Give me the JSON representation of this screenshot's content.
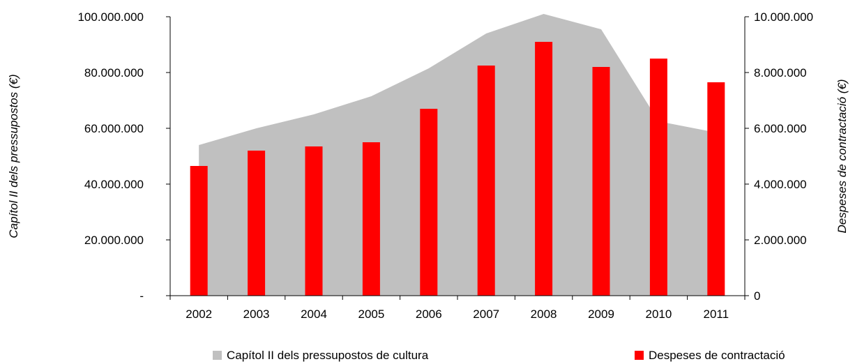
{
  "chart_data": {
    "type": "bar",
    "categories": [
      "2002",
      "2003",
      "2004",
      "2005",
      "2006",
      "2007",
      "2008",
      "2009",
      "2010",
      "2011"
    ],
    "series": [
      {
        "name": "Capítol II dels pressupostos de cultura",
        "kind": "area",
        "axis": "left",
        "color": "#c0c0c0",
        "values": [
          54000000,
          60000000,
          65000000,
          71500000,
          81500000,
          94000000,
          101000000,
          95500000,
          62500000,
          58500000
        ]
      },
      {
        "name": "Despeses de contractació",
        "kind": "bar",
        "axis": "right",
        "color": "#ff0000",
        "values": [
          4650000,
          5200000,
          5350000,
          5500000,
          6700000,
          8250000,
          9100000,
          8200000,
          8500000,
          7650000
        ]
      }
    ],
    "ylabel": "Capítol II dels pressupostos (€)",
    "y2label": "Despeses de contractació (€)",
    "ylim": [
      0,
      100000000
    ],
    "y2lim": [
      0,
      10000000
    ],
    "yticks": [
      "-",
      "20.000.000",
      "40.000.000",
      "60.000.000",
      "80.000.000",
      "100.000.000"
    ],
    "y2ticks": [
      "0",
      "2.000.000",
      "4.000.000",
      "6.000.000",
      "8.000.000",
      "10.000.000"
    ],
    "grid": false,
    "legend": "bottom"
  }
}
